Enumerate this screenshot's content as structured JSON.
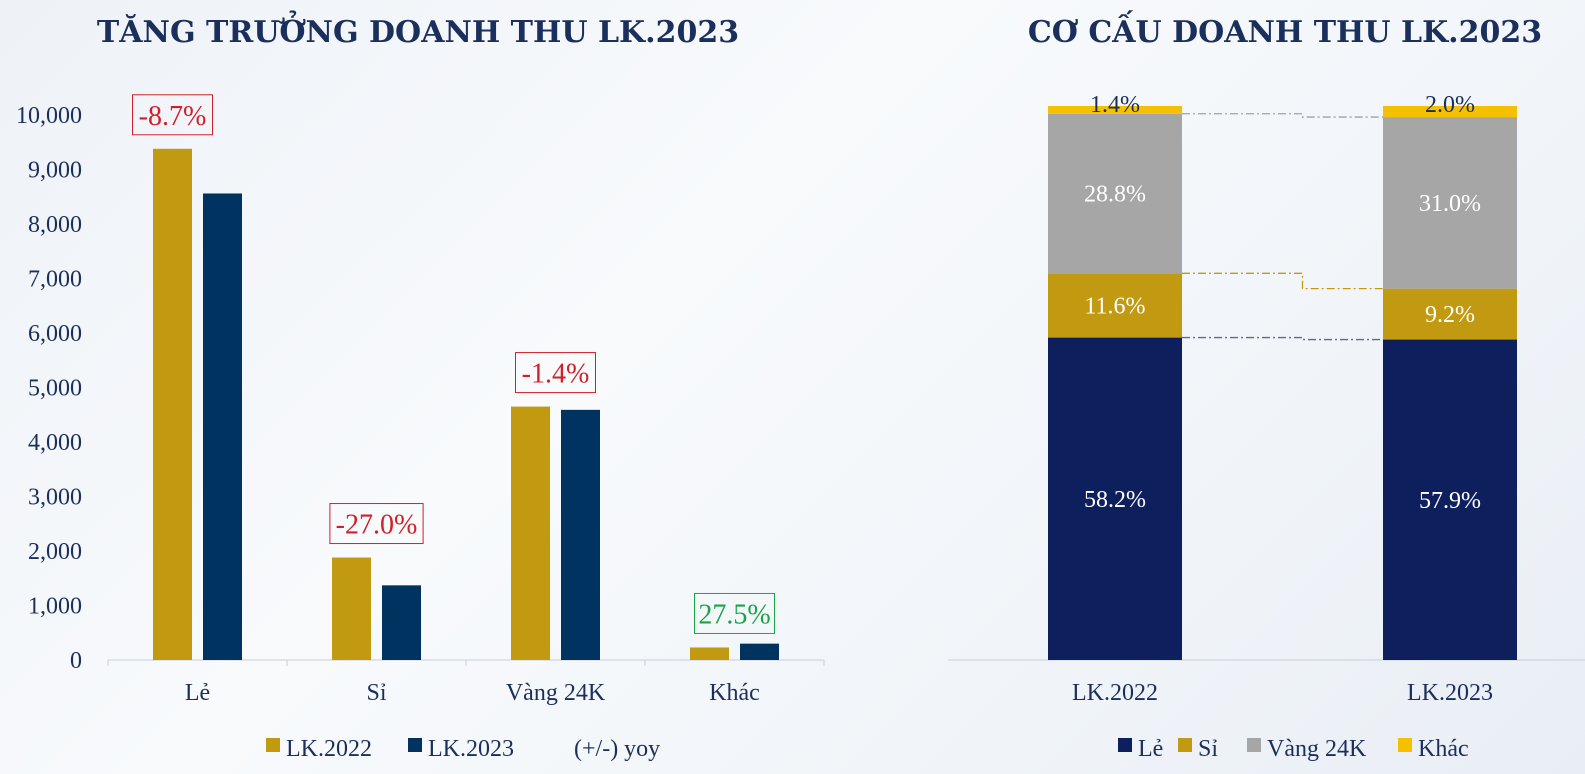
{
  "colors": {
    "lk2022": "#c19a12",
    "lk2023": "#00335f",
    "le": "#0d1f5c",
    "si": "#c19a12",
    "vang24k": "#a6a6a6",
    "khac": "#f5c000",
    "neg": "#d0202a",
    "pos": "#1ba34a",
    "text": "#1b2f5c"
  },
  "chart_data": [
    {
      "type": "bar",
      "title": "TĂNG TRƯỞNG DOANH THU LK.2023",
      "categories": [
        "Lẻ",
        "Sỉ",
        "Vàng 24K",
        "Khác"
      ],
      "series": [
        {
          "name": "LK.2022",
          "values": [
            9380,
            1880,
            4650,
            230
          ]
        },
        {
          "name": "LK.2023",
          "values": [
            8560,
            1370,
            4590,
            300
          ]
        }
      ],
      "yoy": [
        "-8.7%",
        "-27.0%",
        "-1.4%",
        "27.5%"
      ],
      "yoy_positive": [
        false,
        false,
        false,
        true
      ],
      "yoy_legend": "(+/-) yoy",
      "ylim": [
        0,
        10000
      ],
      "yticks": [
        0,
        1000,
        2000,
        3000,
        4000,
        5000,
        6000,
        7000,
        8000,
        9000,
        10000
      ],
      "ytick_labels": [
        "0",
        "1,000",
        "2,000",
        "3,000",
        "4,000",
        "5,000",
        "6,000",
        "7,000",
        "8,000",
        "9,000",
        "10,000"
      ],
      "legend": "bottom"
    },
    {
      "type": "bar",
      "stacked": true,
      "normalized": true,
      "title": "CƠ CẤU DOANH THU LK.2023",
      "categories": [
        "LK.2022",
        "LK.2023"
      ],
      "series": [
        {
          "name": "Lẻ",
          "values": [
            58.2,
            57.9
          ],
          "labels": [
            "58.2%",
            "57.9%"
          ]
        },
        {
          "name": "Sỉ",
          "values": [
            11.6,
            9.2
          ],
          "labels": [
            "11.6%",
            "9.2%"
          ]
        },
        {
          "name": "Vàng 24K",
          "values": [
            28.8,
            31.0
          ],
          "labels": [
            "28.8%",
            "31.0%"
          ]
        },
        {
          "name": "Khác",
          "values": [
            1.4,
            2.0
          ],
          "labels": [
            "1.4%",
            "2.0%"
          ]
        }
      ],
      "ylim": [
        0,
        100
      ],
      "legend": "bottom"
    }
  ]
}
